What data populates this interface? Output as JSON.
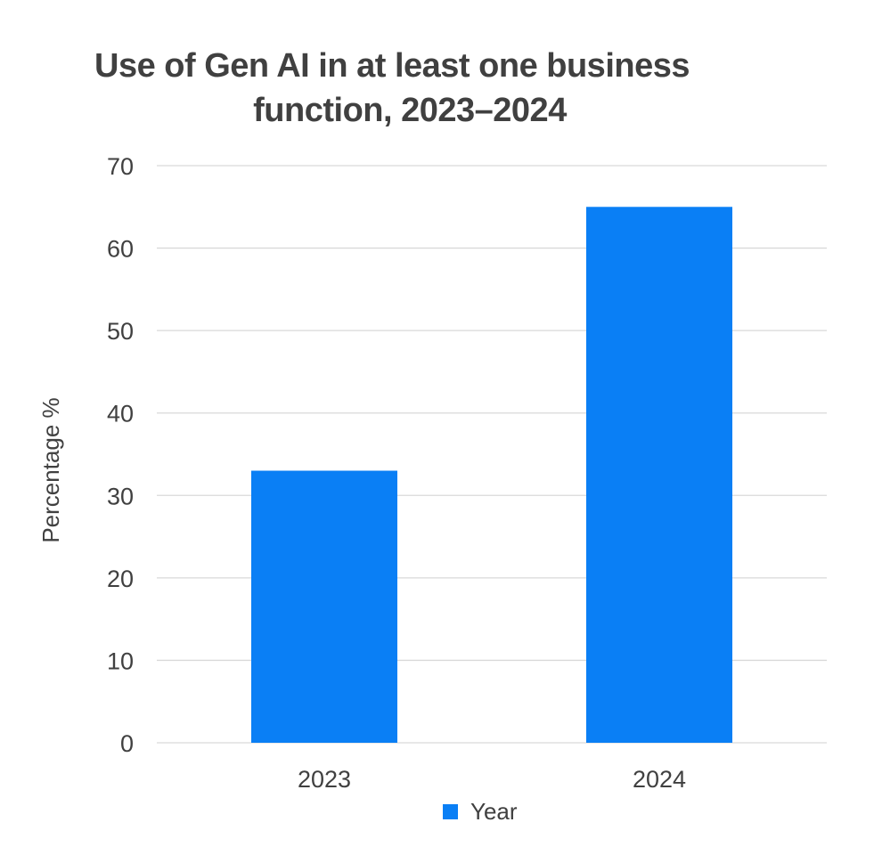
{
  "chart_data": {
    "type": "bar",
    "title": "Use of Gen AI in at least one business function, 2023–2024",
    "title_lines": [
      "Use of Gen AI in at least one business",
      "function, 2023–2024"
    ],
    "categories": [
      "2023",
      "2024"
    ],
    "series": [
      {
        "name": "Year",
        "values": [
          33,
          65
        ],
        "color": "#0a7ff5"
      }
    ],
    "xlabel": "",
    "ylabel": "Percentage %",
    "ylim": [
      0,
      70
    ],
    "yticks": [
      0,
      10,
      20,
      30,
      40,
      50,
      60,
      70
    ],
    "grid": true,
    "legend": "bottom-center",
    "colors": {
      "bar": "#0a7ff5",
      "grid": "#d9d9d9",
      "text": "#404040"
    }
  }
}
